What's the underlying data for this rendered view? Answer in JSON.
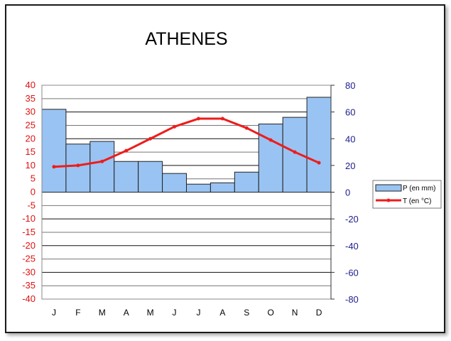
{
  "chart_data": {
    "type": "bar+line",
    "title": "ATHENES",
    "categories": [
      "J",
      "F",
      "M",
      "A",
      "M",
      "J",
      "J",
      "A",
      "S",
      "O",
      "N",
      "D"
    ],
    "series": [
      {
        "name": "P (en mm)",
        "type": "bar",
        "axis": "right",
        "color": "#99c3f2",
        "values": [
          62,
          36,
          38,
          23,
          23,
          14,
          6,
          7,
          15,
          51,
          56,
          71
        ]
      },
      {
        "name": "T (en °C)",
        "type": "line",
        "axis": "left",
        "color": "#ee1c1c",
        "values": [
          9.5,
          10,
          11.5,
          15.5,
          20,
          24.5,
          27.5,
          27.5,
          24,
          19.5,
          15,
          11
        ]
      }
    ],
    "left_axis": {
      "min": -40,
      "max": 40,
      "step": 5,
      "color": "#e01010",
      "ticks": [
        "40",
        "35",
        "30",
        "25",
        "20",
        "15",
        "10",
        "5",
        "0",
        "-5",
        "-10",
        "-15",
        "-20",
        "-25",
        "-30",
        "-35",
        "-40"
      ]
    },
    "right_axis": {
      "min": -80,
      "max": 80,
      "step": 20,
      "color": "#1c1c8c",
      "ticks": [
        "80",
        "60",
        "40",
        "20",
        "0",
        "-20",
        "-40",
        "-60",
        "-80"
      ]
    },
    "grid": true,
    "legend_position": "right"
  }
}
